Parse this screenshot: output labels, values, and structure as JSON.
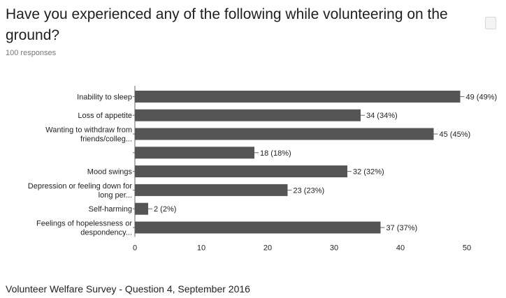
{
  "title": "Have you experienced any of the following while volunteering on the ground?",
  "responses_label": "100 responses",
  "caption": "Volunteer Welfare Survey - Question 4, September 2016",
  "colors": {
    "bar": "#555555",
    "axis": "#666666"
  },
  "chart_data": {
    "type": "bar",
    "orientation": "horizontal",
    "categories": [
      [
        "Inability to sleep"
      ],
      [
        "Loss of appetite"
      ],
      [
        "Wanting to withdraw from",
        "friends/colleg..."
      ],
      [],
      [
        "Mood swings"
      ],
      [
        "Depression or feeling down for",
        "long per..."
      ],
      [
        "Self-harming"
      ],
      [
        "Feelings of hopelessness or",
        "despondency..."
      ]
    ],
    "values": [
      49,
      34,
      45,
      18,
      32,
      23,
      2,
      37
    ],
    "value_labels": [
      "49 (49%)",
      "34 (34%)",
      "45 (45%)",
      "18 (18%)",
      "32 (32%)",
      "23 (23%)",
      "2 (2%)",
      "37 (37%)"
    ],
    "xlim": [
      0,
      50
    ],
    "xticks": [
      "0",
      "10",
      "20",
      "30",
      "40",
      "50"
    ],
    "grid": false,
    "legend": "none"
  }
}
